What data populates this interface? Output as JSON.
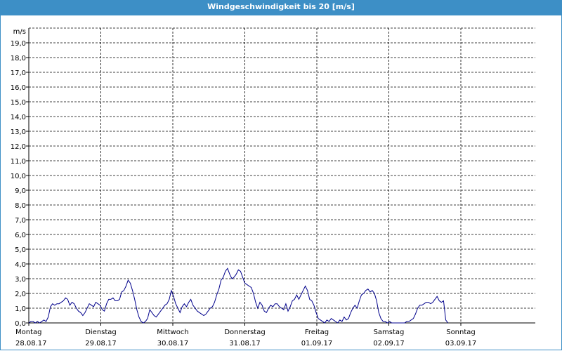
{
  "window": {
    "title": "Windgeschwindigkeit bis 20 [m/s]"
  },
  "chart_data": {
    "type": "line",
    "title": "Windgeschwindigkeit bis 20 [m/s]",
    "ylabel": "m/s",
    "ylim": [
      0,
      20
    ],
    "yticks": [
      "0,0",
      "1,0",
      "2,0",
      "3,0",
      "4,0",
      "5,0",
      "6,0",
      "7,0",
      "8,0",
      "9,0",
      "10,0",
      "11,0",
      "12,0",
      "13,0",
      "14,0",
      "15,0",
      "16,0",
      "17,0",
      "18,0",
      "19,0"
    ],
    "grid": true,
    "line_color": "#00008b",
    "x_labels": [
      {
        "day": "Montag",
        "date": "28.08.17"
      },
      {
        "day": "Dienstag",
        "date": "29.08.17"
      },
      {
        "day": "Mittwoch",
        "date": "30.08.17"
      },
      {
        "day": "Donnerstag",
        "date": "31.08.17"
      },
      {
        "day": "Freitag",
        "date": "01.09.17"
      },
      {
        "day": "Samstag",
        "date": "02.09.17"
      },
      {
        "day": "Sonntag",
        "date": "03.09.17"
      }
    ],
    "series": [
      {
        "points": [
          [
            0,
            0
          ],
          [
            0.03,
            0.1
          ],
          [
            0.06,
            0.1
          ],
          [
            0.09,
            0
          ],
          [
            0.12,
            0.1
          ],
          [
            0.15,
            0
          ],
          [
            0.18,
            0.1
          ],
          [
            0.21,
            0.2
          ],
          [
            0.24,
            0.1
          ],
          [
            0.27,
            0.4
          ],
          [
            0.3,
            1.1
          ],
          [
            0.33,
            1.3
          ],
          [
            0.36,
            1.2
          ],
          [
            0.39,
            1.3
          ],
          [
            0.42,
            1.3
          ],
          [
            0.45,
            1.4
          ],
          [
            0.48,
            1.5
          ],
          [
            0.51,
            1.7
          ],
          [
            0.54,
            1.6
          ],
          [
            0.57,
            1.2
          ],
          [
            0.6,
            1.4
          ],
          [
            0.63,
            1.3
          ],
          [
            0.66,
            1.0
          ],
          [
            0.69,
            0.8
          ],
          [
            0.72,
            0.7
          ],
          [
            0.75,
            0.5
          ],
          [
            0.78,
            0.7
          ],
          [
            0.81,
            1.0
          ],
          [
            0.84,
            1.3
          ],
          [
            0.87,
            1.2
          ],
          [
            0.9,
            1.1
          ],
          [
            0.93,
            1.4
          ],
          [
            0.96,
            1.3
          ],
          [
            0.99,
            1.2
          ],
          [
            1.02,
            0.9
          ],
          [
            1.05,
            0.8
          ],
          [
            1.08,
            1.3
          ],
          [
            1.11,
            1.6
          ],
          [
            1.14,
            1.6
          ],
          [
            1.17,
            1.7
          ],
          [
            1.2,
            1.5
          ],
          [
            1.23,
            1.5
          ],
          [
            1.26,
            1.6
          ],
          [
            1.29,
            2.1
          ],
          [
            1.32,
            2.2
          ],
          [
            1.35,
            2.5
          ],
          [
            1.38,
            2.9
          ],
          [
            1.41,
            2.7
          ],
          [
            1.44,
            2.2
          ],
          [
            1.47,
            1.6
          ],
          [
            1.5,
            0.9
          ],
          [
            1.53,
            0.4
          ],
          [
            1.56,
            0.1
          ],
          [
            1.59,
            0
          ],
          [
            1.62,
            0.1
          ],
          [
            1.65,
            0.3
          ],
          [
            1.68,
            0.9
          ],
          [
            1.71,
            0.7
          ],
          [
            1.74,
            0.5
          ],
          [
            1.77,
            0.4
          ],
          [
            1.8,
            0.6
          ],
          [
            1.83,
            0.8
          ],
          [
            1.86,
            1.0
          ],
          [
            1.89,
            1.2
          ],
          [
            1.92,
            1.3
          ],
          [
            1.95,
            1.6
          ],
          [
            1.98,
            2.2
          ],
          [
            2.01,
            1.8
          ],
          [
            2.04,
            1.3
          ],
          [
            2.07,
            1.0
          ],
          [
            2.1,
            0.7
          ],
          [
            2.13,
            1.1
          ],
          [
            2.16,
            1.3
          ],
          [
            2.19,
            1.1
          ],
          [
            2.22,
            1.4
          ],
          [
            2.25,
            1.6
          ],
          [
            2.28,
            1.2
          ],
          [
            2.31,
            1.0
          ],
          [
            2.34,
            0.8
          ],
          [
            2.37,
            0.7
          ],
          [
            2.4,
            0.6
          ],
          [
            2.43,
            0.5
          ],
          [
            2.46,
            0.6
          ],
          [
            2.49,
            0.8
          ],
          [
            2.52,
            1.0
          ],
          [
            2.55,
            1.1
          ],
          [
            2.58,
            1.4
          ],
          [
            2.61,
            1.9
          ],
          [
            2.64,
            2.3
          ],
          [
            2.67,
            2.9
          ],
          [
            2.7,
            3.1
          ],
          [
            2.73,
            3.5
          ],
          [
            2.76,
            3.7
          ],
          [
            2.79,
            3.3
          ],
          [
            2.82,
            3.0
          ],
          [
            2.85,
            3.1
          ],
          [
            2.88,
            3.3
          ],
          [
            2.91,
            3.6
          ],
          [
            2.94,
            3.5
          ],
          [
            2.97,
            3.1
          ],
          [
            3.0,
            2.7
          ],
          [
            3.03,
            2.6
          ],
          [
            3.06,
            2.5
          ],
          [
            3.09,
            2.4
          ],
          [
            3.12,
            2.0
          ],
          [
            3.15,
            1.4
          ],
          [
            3.18,
            1.0
          ],
          [
            3.21,
            1.4
          ],
          [
            3.24,
            1.2
          ],
          [
            3.27,
            0.8
          ],
          [
            3.3,
            0.7
          ],
          [
            3.33,
            1.0
          ],
          [
            3.36,
            1.2
          ],
          [
            3.39,
            1.1
          ],
          [
            3.42,
            1.3
          ],
          [
            3.45,
            1.3
          ],
          [
            3.48,
            1.1
          ],
          [
            3.51,
            1.0
          ],
          [
            3.54,
            0.9
          ],
          [
            3.57,
            1.3
          ],
          [
            3.6,
            0.8
          ],
          [
            3.63,
            1.1
          ],
          [
            3.66,
            1.5
          ],
          [
            3.69,
            1.6
          ],
          [
            3.72,
            1.9
          ],
          [
            3.75,
            1.6
          ],
          [
            3.78,
            1.9
          ],
          [
            3.81,
            2.2
          ],
          [
            3.84,
            2.5
          ],
          [
            3.87,
            2.2
          ],
          [
            3.9,
            1.6
          ],
          [
            3.93,
            1.5
          ],
          [
            3.96,
            1.2
          ],
          [
            3.99,
            0.7
          ],
          [
            4.02,
            0.3
          ],
          [
            4.05,
            0.2
          ],
          [
            4.08,
            0.1
          ],
          [
            4.11,
            0
          ],
          [
            4.14,
            0.2
          ],
          [
            4.17,
            0.1
          ],
          [
            4.2,
            0.3
          ],
          [
            4.23,
            0.2
          ],
          [
            4.26,
            0.1
          ],
          [
            4.29,
            0
          ],
          [
            4.32,
            0.2
          ],
          [
            4.35,
            0.1
          ],
          [
            4.38,
            0.4
          ],
          [
            4.41,
            0.2
          ],
          [
            4.44,
            0.3
          ],
          [
            4.47,
            0.7
          ],
          [
            4.5,
            1.0
          ],
          [
            4.53,
            1.2
          ],
          [
            4.56,
            1.0
          ],
          [
            4.59,
            1.5
          ],
          [
            4.62,
            1.9
          ],
          [
            4.65,
            2.0
          ],
          [
            4.68,
            2.2
          ],
          [
            4.71,
            2.3
          ],
          [
            4.74,
            2.1
          ],
          [
            4.77,
            2.2
          ],
          [
            4.8,
            2.0
          ],
          [
            4.83,
            1.5
          ],
          [
            4.86,
            0.7
          ],
          [
            4.89,
            0.3
          ],
          [
            4.92,
            0.1
          ],
          [
            4.95,
            0.1
          ],
          [
            4.98,
            0
          ],
          [
            5.01,
            0.1
          ],
          [
            5.04,
            0
          ],
          [
            5.07,
            0
          ],
          [
            5.1,
            0
          ],
          [
            5.13,
            0
          ],
          [
            5.16,
            0
          ],
          [
            5.19,
            0
          ],
          [
            5.22,
            0
          ],
          [
            5.25,
            0.1
          ],
          [
            5.28,
            0.1
          ],
          [
            5.31,
            0.2
          ],
          [
            5.34,
            0.3
          ],
          [
            5.37,
            0.6
          ],
          [
            5.4,
            1.0
          ],
          [
            5.43,
            1.2
          ],
          [
            5.46,
            1.2
          ],
          [
            5.49,
            1.3
          ],
          [
            5.52,
            1.4
          ],
          [
            5.55,
            1.4
          ],
          [
            5.58,
            1.3
          ],
          [
            5.61,
            1.4
          ],
          [
            5.64,
            1.6
          ],
          [
            5.67,
            1.8
          ],
          [
            5.7,
            1.5
          ],
          [
            5.73,
            1.4
          ],
          [
            5.76,
            1.5
          ],
          [
            5.79,
            0.2
          ],
          [
            5.82,
            0
          ]
        ]
      }
    ]
  }
}
